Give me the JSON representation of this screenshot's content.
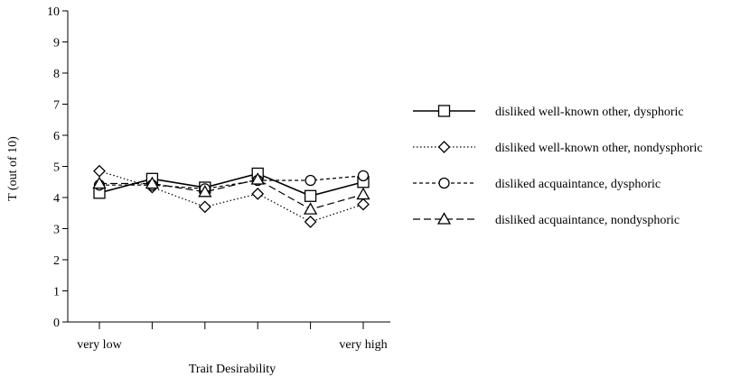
{
  "chart_data": {
    "type": "line",
    "xlabel": "Trait Desirability",
    "ylabel": "T (out of 10)",
    "ylim": [
      0,
      10
    ],
    "yticks": [
      0,
      1,
      2,
      3,
      4,
      5,
      6,
      7,
      8,
      9,
      10
    ],
    "x": [
      1,
      2,
      3,
      4,
      5,
      6
    ],
    "x_tick_labels": [
      "very low",
      "",
      "",
      "",
      "",
      "very high"
    ],
    "legend_position": "right",
    "grid": false,
    "series": [
      {
        "name": "disliked well-known other, dysphoric",
        "marker": "square",
        "line": "solid",
        "values": [
          4.15,
          4.6,
          4.32,
          4.77,
          4.05,
          4.5
        ]
      },
      {
        "name": "disliked well-known other, nondysphoric",
        "marker": "diamond",
        "line": "dotted",
        "values": [
          4.85,
          4.33,
          3.7,
          4.12,
          3.22,
          3.78
        ]
      },
      {
        "name": "disliked acquaintance, dysphoric",
        "marker": "circle",
        "line": "dashed",
        "values": [
          4.4,
          4.4,
          4.28,
          4.55,
          4.55,
          4.7
        ]
      },
      {
        "name": "disliked acquaintance, nondysphoric",
        "marker": "triangle",
        "line": "longdash",
        "values": [
          4.45,
          4.45,
          4.18,
          4.58,
          3.62,
          4.1
        ]
      }
    ]
  }
}
